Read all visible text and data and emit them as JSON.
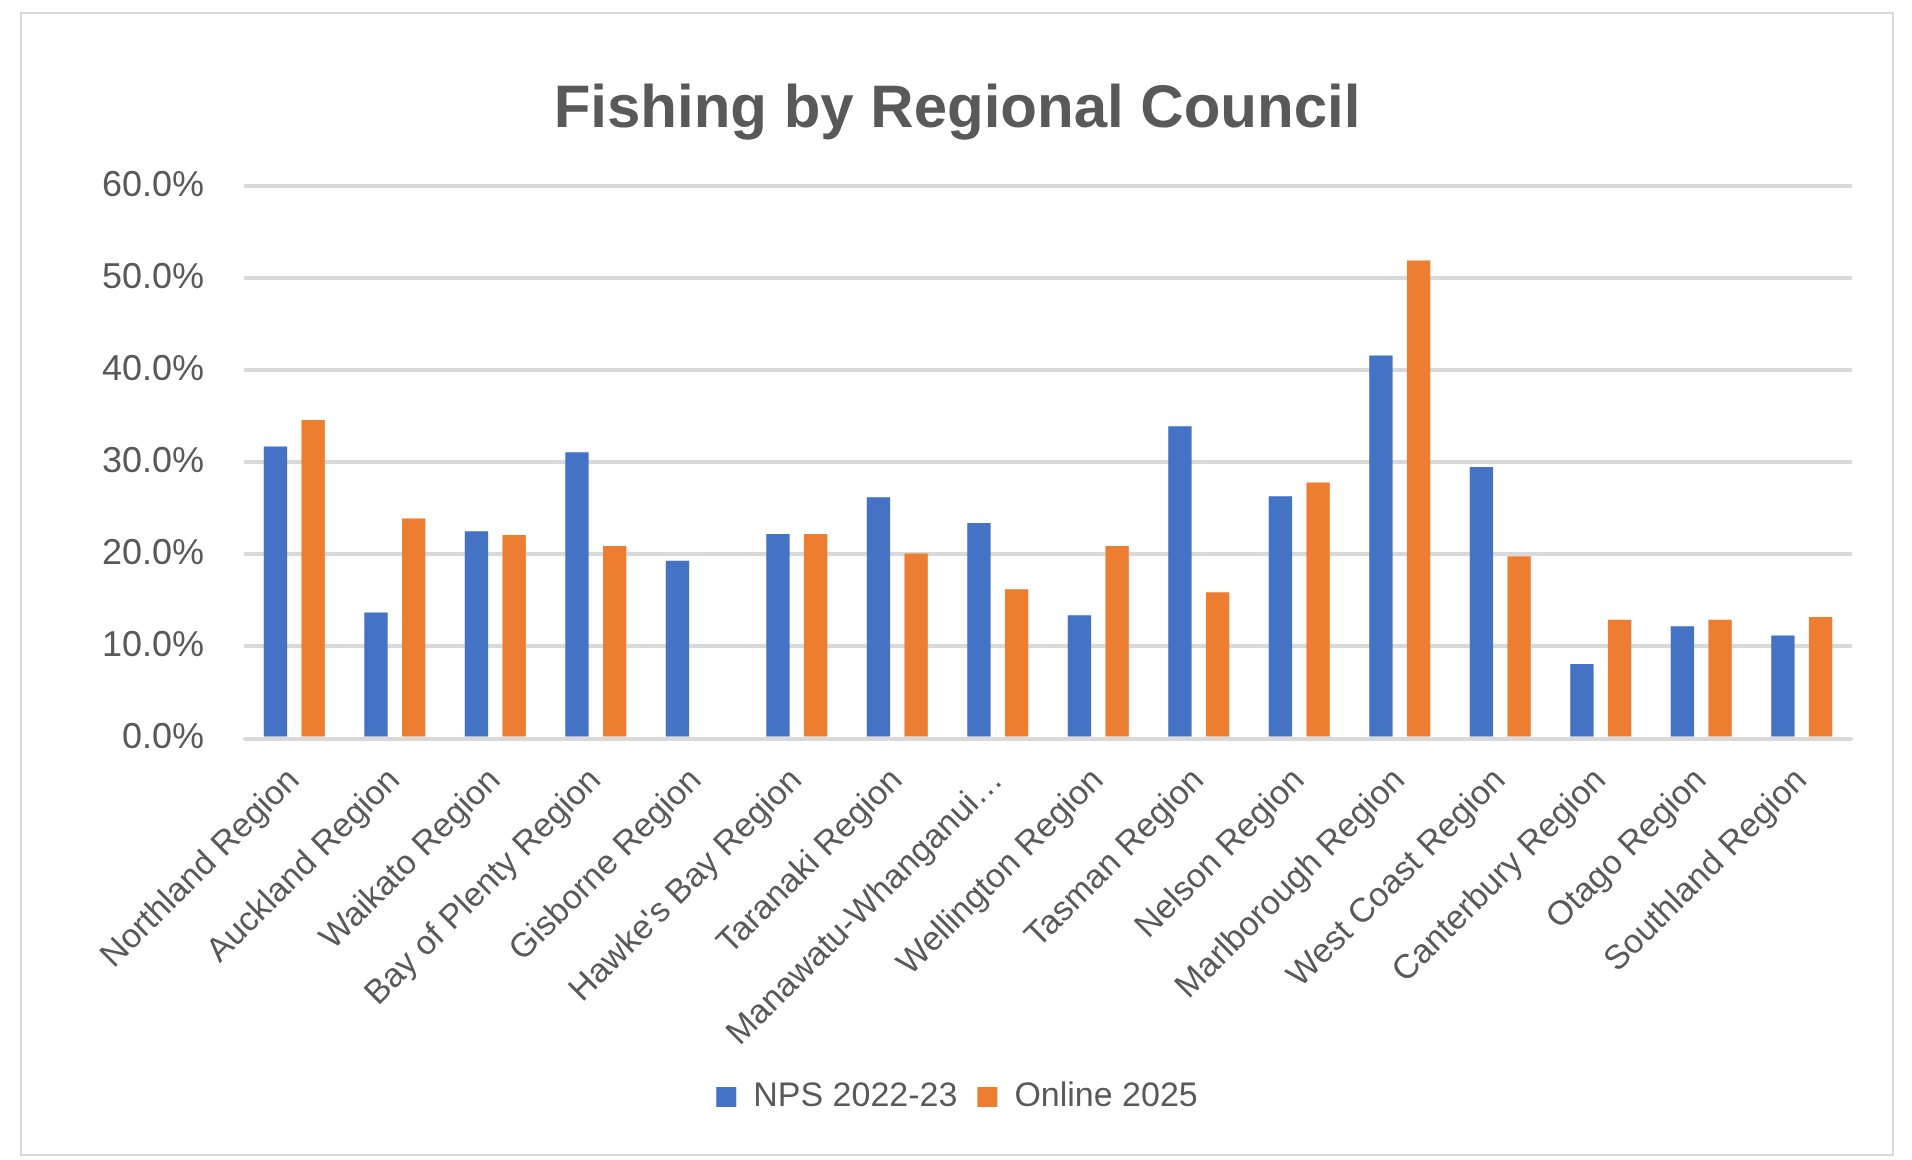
{
  "chart_data": {
    "type": "bar",
    "title": "Fishing by Regional Council",
    "categories": [
      "Northland Region",
      "Auckland Region",
      "Waikato Region",
      "Bay of Plenty Region",
      "Gisborne Region",
      "Hawke's Bay Region",
      "Taranaki Region",
      "Manawatu-Whanganui…",
      "Wellington Region",
      "Tasman Region",
      "Nelson Region",
      "Marlborough Region",
      "West Coast Region",
      "Canterbury Region",
      "Otago Region",
      "Southland Region"
    ],
    "series": [
      {
        "name": "NPS 2022-23",
        "color": "#4472c4",
        "values": [
          31.7,
          13.7,
          22.5,
          31.1,
          19.3,
          22.2,
          26.2,
          23.4,
          13.4,
          33.9,
          26.3,
          41.6,
          29.5,
          8.1,
          12.2,
          11.2
        ]
      },
      {
        "name": "Online 2025",
        "color": "#ed7d31",
        "values": [
          34.6,
          23.9,
          22.1,
          20.9,
          null,
          22.2,
          20.1,
          16.2,
          20.9,
          15.9,
          27.8,
          51.9,
          19.8,
          12.9,
          12.9,
          13.2
        ]
      }
    ],
    "ylim": [
      0,
      60
    ],
    "yticks": [
      {
        "value": 0,
        "label": "0.0%"
      },
      {
        "value": 10,
        "label": "10.0%"
      },
      {
        "value": 20,
        "label": "20.0%"
      },
      {
        "value": 30,
        "label": "30.0%"
      },
      {
        "value": 40,
        "label": "40.0%"
      },
      {
        "value": 50,
        "label": "50.0%"
      },
      {
        "value": 60,
        "label": "60.0%"
      }
    ],
    "grid": "y",
    "legend": "bottom"
  }
}
